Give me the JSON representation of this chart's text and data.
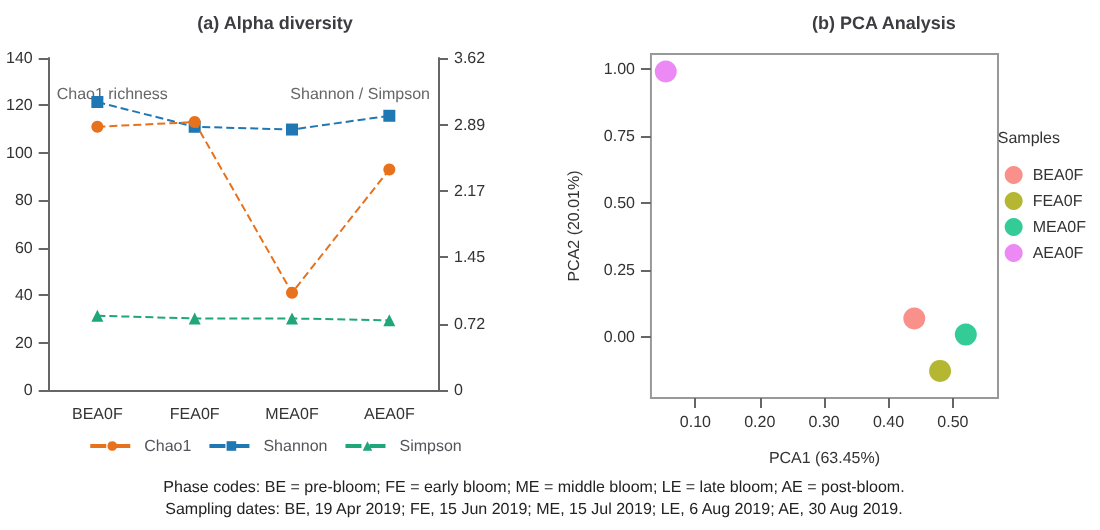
{
  "chart_data": [
    {
      "type": "line",
      "title": "(a) Alpha diversity",
      "categories": [
        "BEA0F",
        "FEA0F",
        "MEA0F",
        "AEA0F"
      ],
      "series": [
        {
          "name": "Chao1",
          "color": "#e8711c",
          "marker": "circle",
          "values": [
            111,
            113,
            41,
            93
          ]
        },
        {
          "name": "Shannon",
          "color": "#1f78b4",
          "marker": "square",
          "axis": "y2",
          "values": [
            3.14,
            2.87,
            2.84,
            2.99
          ]
        },
        {
          "name": "Simpson",
          "color": "#1fa67a",
          "marker": "triangle",
          "axis": "y2",
          "values": [
            0.81,
            0.78,
            0.78,
            0.76
          ]
        }
      ],
      "ylabel": "Chao1 richness",
      "y2label": "Shannon / Simpson",
      "ylim": [
        0,
        140
      ],
      "yticks": [
        0,
        20,
        40,
        60,
        80,
        100,
        120,
        140
      ],
      "y2lim": [
        0,
        3.62
      ],
      "y2ticks": [
        0,
        0.72,
        1.45,
        2.17,
        2.89,
        3.62
      ],
      "line_style": "dashed",
      "grid": false,
      "legend": "bottom",
      "annotations": [
        "Phase codes: BE = pre-bloom; FE = early bloom; ME = middle bloom; LE = late bloom; AE = post-bloom.",
        "Sampling dates: BE, 19 Apr 2019; FE, 15 Jun 2019; ME, 15 Jul 2019; LE, 6 Aug 2019; AE, 30 Aug 2019."
      ]
    },
    {
      "type": "scatter",
      "title": "(b) PCA Analysis",
      "xlabel": "PCA1 (63.45%)",
      "ylabel": "PCA2 (20.01%)",
      "legend_title": "Samples",
      "legend": "right",
      "marker": "circle",
      "grid": false,
      "series": [
        {
          "name": "BEA0F",
          "color": "#f8766d",
          "x": [
            0.44
          ],
          "values": [
            0.07
          ]
        },
        {
          "name": "FEA0F",
          "color": "#a3a500",
          "x": [
            0.48
          ],
          "values": [
            -0.125
          ]
        },
        {
          "name": "MEA0F",
          "color": "#00bf7d",
          "x": [
            0.52
          ],
          "values": [
            0.01
          ]
        },
        {
          "name": "AEA0F",
          "color": "#e76bf3",
          "x": [
            0.054
          ],
          "values": [
            0.99
          ]
        }
      ],
      "xlim": [
        0.031,
        0.57
      ],
      "ylim": [
        -0.226,
        1.055
      ],
      "xticks": [
        {
          "value": 0.1,
          "label": "0.10"
        },
        {
          "value": 0.2,
          "label": "0.20"
        },
        {
          "value": 0.3,
          "label": "0.30"
        },
        {
          "value": 0.4,
          "label": "0.40"
        },
        {
          "value": 0.5,
          "label": "0.50"
        }
      ],
      "yticks": [
        {
          "value": 0,
          "label": "0.00"
        },
        {
          "value": 0.25,
          "label": "0.25"
        },
        {
          "value": 0.5,
          "label": "0.50"
        },
        {
          "value": 0.75,
          "label": "0.75"
        },
        {
          "value": 1,
          "label": "1.00"
        }
      ]
    }
  ]
}
